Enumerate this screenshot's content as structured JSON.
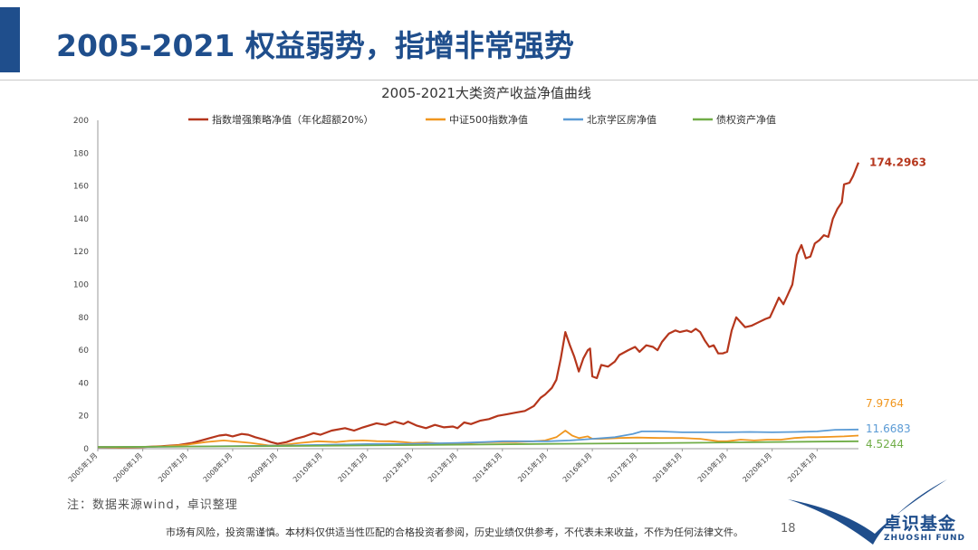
{
  "slide": {
    "title": "2005-2021 权益弱势，指增非常强势",
    "note": "注：数据来源wind，卓识整理",
    "disclaimer": "市场有风险，投资需谨慎。本材料仅供适当性匹配的合格投资者参阅，历史业绩仅供参考，不代表未来收益，不作为任何法律文件。",
    "page_number": "18",
    "logo": {
      "name_cn": "卓识基金",
      "name_en": "ZHUOSHI FUND"
    },
    "colors": {
      "brand": "#1f4e8c"
    }
  },
  "chart_data": {
    "type": "line",
    "title": "2005-2021大类资产收益净值曲线",
    "ylim": [
      0,
      200
    ],
    "yticks": [
      "0",
      "20",
      "40",
      "60",
      "80",
      "100",
      "120",
      "140",
      "160",
      "180",
      "200"
    ],
    "xlim": [
      2005.0,
      2021.92
    ],
    "xticks": [
      {
        "x": 2005.0,
        "label": "2005年1月"
      },
      {
        "x": 2006.0,
        "label": "2006年1月"
      },
      {
        "x": 2007.0,
        "label": "2007年1月"
      },
      {
        "x": 2008.0,
        "label": "2008年1月"
      },
      {
        "x": 2009.0,
        "label": "2009年1月"
      },
      {
        "x": 2010.0,
        "label": "2010年1月"
      },
      {
        "x": 2011.0,
        "label": "2011年1月"
      },
      {
        "x": 2012.0,
        "label": "2012年1月"
      },
      {
        "x": 2013.0,
        "label": "2013年1月"
      },
      {
        "x": 2014.0,
        "label": "2014年1月"
      },
      {
        "x": 2015.0,
        "label": "2015年1月"
      },
      {
        "x": 2016.0,
        "label": "2016年1月"
      },
      {
        "x": 2017.0,
        "label": "2017年1月"
      },
      {
        "x": 2018.0,
        "label": "2018年1月"
      },
      {
        "x": 2019.0,
        "label": "2019年1月"
      },
      {
        "x": 2020.0,
        "label": "2020年1月"
      },
      {
        "x": 2021.0,
        "label": "2021年1月"
      }
    ],
    "grid": false,
    "legend": "top",
    "series": [
      {
        "name": "指数增强策略净值（年化超额20%）",
        "color": "#b5361c",
        "end_label": "174.2963",
        "points": [
          [
            2005.0,
            1
          ],
          [
            2005.5,
            0.8
          ],
          [
            2006.0,
            1
          ],
          [
            2006.4,
            1.5
          ],
          [
            2006.8,
            2.2
          ],
          [
            2007.1,
            3.5
          ],
          [
            2007.3,
            5
          ],
          [
            2007.5,
            6.5
          ],
          [
            2007.7,
            8
          ],
          [
            2007.85,
            8.5
          ],
          [
            2008.0,
            7.5
          ],
          [
            2008.2,
            9
          ],
          [
            2008.35,
            8.5
          ],
          [
            2008.5,
            7
          ],
          [
            2008.7,
            5.5
          ],
          [
            2008.85,
            4
          ],
          [
            2009.0,
            3
          ],
          [
            2009.2,
            4
          ],
          [
            2009.4,
            6
          ],
          [
            2009.6,
            7.5
          ],
          [
            2009.8,
            9.5
          ],
          [
            2009.95,
            8.5
          ],
          [
            2010.2,
            11
          ],
          [
            2010.5,
            12.5
          ],
          [
            2010.7,
            11
          ],
          [
            2010.9,
            13
          ],
          [
            2011.2,
            15.5
          ],
          [
            2011.4,
            14.5
          ],
          [
            2011.6,
            16.5
          ],
          [
            2011.8,
            15
          ],
          [
            2011.9,
            16.5
          ],
          [
            2012.1,
            14
          ],
          [
            2012.3,
            12.5
          ],
          [
            2012.5,
            14.5
          ],
          [
            2012.7,
            13
          ],
          [
            2012.9,
            13.5
          ],
          [
            2013.0,
            12.5
          ],
          [
            2013.15,
            16
          ],
          [
            2013.3,
            15
          ],
          [
            2013.5,
            17
          ],
          [
            2013.7,
            18
          ],
          [
            2013.9,
            20
          ],
          [
            2014.1,
            21
          ],
          [
            2014.3,
            22
          ],
          [
            2014.5,
            23
          ],
          [
            2014.7,
            26
          ],
          [
            2014.85,
            31
          ],
          [
            2014.95,
            33
          ],
          [
            2015.1,
            37
          ],
          [
            2015.2,
            42
          ],
          [
            2015.3,
            55
          ],
          [
            2015.4,
            71
          ],
          [
            2015.5,
            63
          ],
          [
            2015.6,
            56
          ],
          [
            2015.7,
            47
          ],
          [
            2015.8,
            55
          ],
          [
            2015.9,
            60
          ],
          [
            2015.95,
            61
          ],
          [
            2016.0,
            44
          ],
          [
            2016.1,
            43
          ],
          [
            2016.2,
            51
          ],
          [
            2016.35,
            50
          ],
          [
            2016.5,
            53
          ],
          [
            2016.6,
            57
          ],
          [
            2016.8,
            60
          ],
          [
            2016.95,
            62
          ],
          [
            2017.05,
            59
          ],
          [
            2017.2,
            63
          ],
          [
            2017.35,
            62
          ],
          [
            2017.45,
            60
          ],
          [
            2017.55,
            65
          ],
          [
            2017.7,
            70
          ],
          [
            2017.85,
            72
          ],
          [
            2017.95,
            71
          ],
          [
            2018.1,
            72
          ],
          [
            2018.2,
            71
          ],
          [
            2018.3,
            73
          ],
          [
            2018.4,
            71
          ],
          [
            2018.5,
            66
          ],
          [
            2018.6,
            62
          ],
          [
            2018.7,
            63
          ],
          [
            2018.8,
            58
          ],
          [
            2018.9,
            58
          ],
          [
            2019.0,
            59
          ],
          [
            2019.1,
            72
          ],
          [
            2019.2,
            80
          ],
          [
            2019.3,
            77
          ],
          [
            2019.4,
            74
          ],
          [
            2019.55,
            75
          ],
          [
            2019.7,
            77
          ],
          [
            2019.85,
            79
          ],
          [
            2019.95,
            80
          ],
          [
            2020.05,
            86
          ],
          [
            2020.15,
            92
          ],
          [
            2020.25,
            88
          ],
          [
            2020.35,
            94
          ],
          [
            2020.45,
            100
          ],
          [
            2020.55,
            118
          ],
          [
            2020.65,
            124
          ],
          [
            2020.75,
            116
          ],
          [
            2020.85,
            117
          ],
          [
            2020.95,
            125
          ],
          [
            2021.05,
            127
          ],
          [
            2021.15,
            130
          ],
          [
            2021.25,
            129
          ],
          [
            2021.35,
            140
          ],
          [
            2021.45,
            146
          ],
          [
            2021.55,
            150
          ],
          [
            2021.6,
            161
          ],
          [
            2021.72,
            162
          ],
          [
            2021.8,
            166
          ],
          [
            2021.92,
            174.2963
          ]
        ]
      },
      {
        "name": "中证500指数净值",
        "color": "#f0961e",
        "end_label": "7.9764",
        "points": [
          [
            2005.0,
            1
          ],
          [
            2005.5,
            0.8
          ],
          [
            2006.0,
            1
          ],
          [
            2006.5,
            1.5
          ],
          [
            2007.0,
            2.5
          ],
          [
            2007.4,
            4
          ],
          [
            2007.8,
            5
          ],
          [
            2008.0,
            4.5
          ],
          [
            2008.4,
            3.5
          ],
          [
            2008.8,
            2
          ],
          [
            2009.0,
            2
          ],
          [
            2009.5,
            3.5
          ],
          [
            2009.9,
            4.5
          ],
          [
            2010.3,
            4
          ],
          [
            2010.6,
            4.8
          ],
          [
            2010.9,
            5
          ],
          [
            2011.2,
            4.6
          ],
          [
            2011.5,
            4.5
          ],
          [
            2011.8,
            4
          ],
          [
            2012.0,
            3.5
          ],
          [
            2012.3,
            3.8
          ],
          [
            2012.6,
            3.2
          ],
          [
            2012.9,
            3
          ],
          [
            2013.2,
            3.4
          ],
          [
            2013.5,
            3.8
          ],
          [
            2013.9,
            4
          ],
          [
            2014.3,
            4
          ],
          [
            2014.7,
            4.5
          ],
          [
            2014.95,
            5
          ],
          [
            2015.2,
            7
          ],
          [
            2015.4,
            11
          ],
          [
            2015.55,
            8
          ],
          [
            2015.7,
            6.5
          ],
          [
            2015.9,
            7.5
          ],
          [
            2016.0,
            6
          ],
          [
            2016.2,
            6
          ],
          [
            2016.6,
            6.5
          ],
          [
            2017.0,
            6.8
          ],
          [
            2017.5,
            6.5
          ],
          [
            2018.0,
            6.5
          ],
          [
            2018.4,
            6
          ],
          [
            2018.8,
            4.5
          ],
          [
            2019.0,
            4.5
          ],
          [
            2019.3,
            5.5
          ],
          [
            2019.6,
            5
          ],
          [
            2019.9,
            5.5
          ],
          [
            2020.2,
            5.5
          ],
          [
            2020.5,
            6.5
          ],
          [
            2020.8,
            7
          ],
          [
            2021.0,
            7
          ],
          [
            2021.3,
            7.2
          ],
          [
            2021.6,
            7.5
          ],
          [
            2021.92,
            7.9764
          ]
        ]
      },
      {
        "name": "北京学区房净值",
        "color": "#5b9bd5",
        "end_label": "11.6683",
        "points": [
          [
            2005.0,
            1
          ],
          [
            2006.0,
            1.1
          ],
          [
            2007.0,
            1.3
          ],
          [
            2008.0,
            1.6
          ],
          [
            2009.0,
            1.8
          ],
          [
            2010.0,
            2.3
          ],
          [
            2011.0,
            2.8
          ],
          [
            2012.0,
            3
          ],
          [
            2013.0,
            3.5
          ],
          [
            2013.6,
            4
          ],
          [
            2014.0,
            4.5
          ],
          [
            2014.6,
            4.5
          ],
          [
            2015.0,
            4.5
          ],
          [
            2015.5,
            5
          ],
          [
            2016.0,
            6
          ],
          [
            2016.5,
            7
          ],
          [
            2016.9,
            9
          ],
          [
            2017.1,
            10.5
          ],
          [
            2017.5,
            10.5
          ],
          [
            2018.0,
            10
          ],
          [
            2018.5,
            10
          ],
          [
            2019.0,
            10
          ],
          [
            2019.5,
            10.2
          ],
          [
            2020.0,
            10
          ],
          [
            2020.5,
            10.2
          ],
          [
            2021.0,
            10.5
          ],
          [
            2021.4,
            11.5
          ],
          [
            2021.92,
            11.6683
          ]
        ]
      },
      {
        "name": "债权资产净值",
        "color": "#70ad47",
        "end_label": "4.5244",
        "points": [
          [
            2005.0,
            1
          ],
          [
            2007.0,
            1.3
          ],
          [
            2009.0,
            1.6
          ],
          [
            2011.0,
            2
          ],
          [
            2013.0,
            2.4
          ],
          [
            2015.0,
            2.9
          ],
          [
            2017.0,
            3.3
          ],
          [
            2019.0,
            3.8
          ],
          [
            2021.0,
            4.3
          ],
          [
            2021.92,
            4.5244
          ]
        ]
      }
    ]
  }
}
